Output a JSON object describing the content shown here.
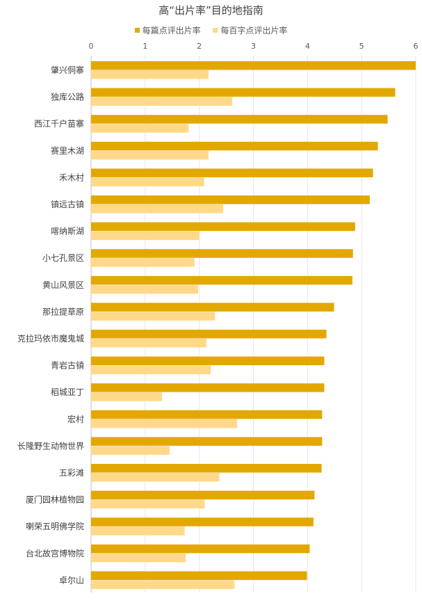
{
  "chart_data": {
    "type": "bar",
    "orientation": "horizontal",
    "title": "高“出片率”目的地指南",
    "legend_position": "top",
    "xlim": [
      0,
      6
    ],
    "x_ticks": [
      "0",
      "1",
      "2",
      "3",
      "4",
      "5",
      "6"
    ],
    "grid": true,
    "categories": [
      "肇兴侗寨",
      "独库公路",
      "西江千户苗寨",
      "赛里木湖",
      "禾木村",
      "镇远古镇",
      "喀纳斯湖",
      "小七孔景区",
      "黄山风景区",
      "那拉提草原",
      "克拉玛依市魔鬼城",
      "青岩古镇",
      "稻城亚丁",
      "宏村",
      "长隆野生动物世界",
      "五彩滩",
      "厦门园林植物园",
      "喇荣五明佛学院",
      "台北故宫博物院",
      "卓尔山"
    ],
    "series": [
      {
        "name": "每篇点评出片率",
        "color": "#E3A800",
        "values": [
          6.0,
          5.62,
          5.48,
          5.3,
          5.21,
          5.15,
          4.88,
          4.84,
          4.83,
          4.49,
          4.35,
          4.31,
          4.31,
          4.27,
          4.27,
          4.26,
          4.13,
          4.11,
          4.04,
          3.99
        ]
      },
      {
        "name": "每百字点评出片率",
        "color": "#FFD88A",
        "values": [
          2.17,
          2.61,
          1.8,
          2.17,
          2.09,
          2.44,
          2.0,
          1.91,
          1.98,
          2.29,
          2.13,
          2.21,
          1.31,
          2.7,
          1.45,
          2.37,
          2.1,
          1.73,
          1.75,
          2.65
        ]
      }
    ]
  }
}
